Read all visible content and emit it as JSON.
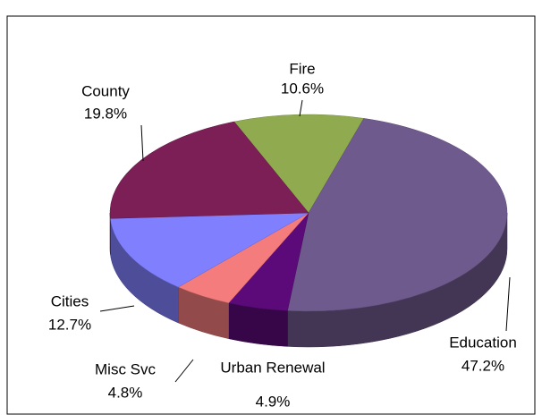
{
  "chart_data": {
    "type": "pie",
    "categories": [
      "Fire",
      "Education",
      "Urban Renewal",
      "Misc Svc",
      "Cities",
      "County"
    ],
    "values": [
      10.6,
      47.2,
      4.9,
      4.8,
      12.7,
      19.8
    ],
    "value_labels": [
      "10.6%",
      "47.2%",
      "4.9%",
      "4.8%",
      "12.7%",
      "19.8%"
    ],
    "colors": [
      "#8faa4f",
      "#6f5a8e",
      "#5c0a7a",
      "#f47c7c",
      "#8080ff",
      "#7b1f56"
    ]
  }
}
